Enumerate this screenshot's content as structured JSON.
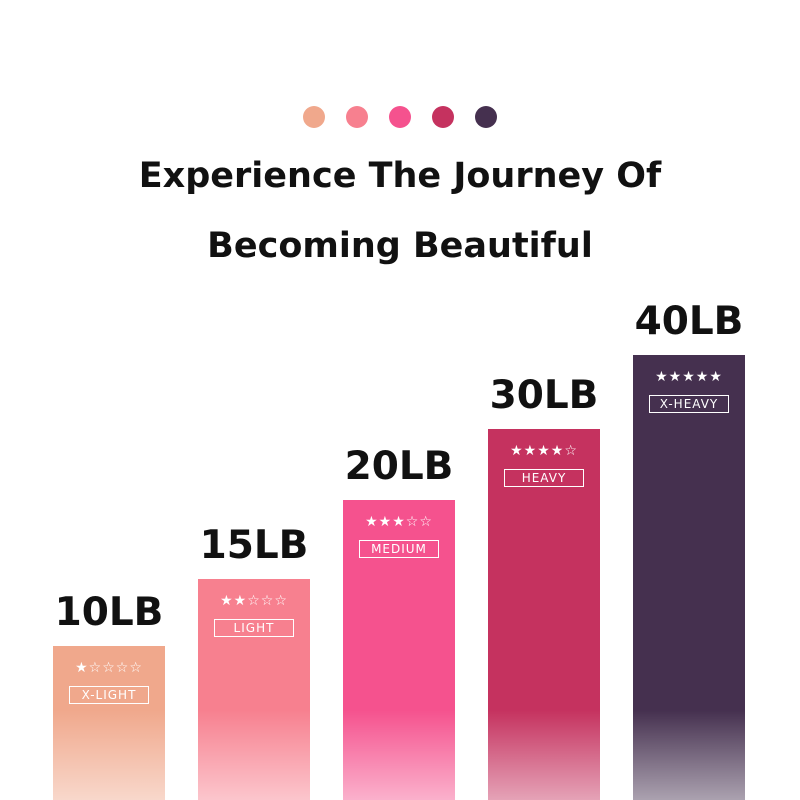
{
  "dots": [
    "#F0A88C",
    "#F7808F",
    "#F5528E",
    "#C5325F",
    "#45304F"
  ],
  "title_line1": "Experience The Journey Of",
  "title_line2": "Becoming Beautiful",
  "chart_data": {
    "type": "bar",
    "categories": [
      "X-LIGHT",
      "LIGHT",
      "MEDIUM",
      "HEAVY",
      "X-HEAVY"
    ],
    "values": [
      10,
      15,
      20,
      30,
      40
    ],
    "value_labels": [
      "10LB",
      "15LB",
      "20LB",
      "30LB",
      "40LB"
    ],
    "stars": [
      1,
      2,
      3,
      4,
      5
    ],
    "colors": [
      "#F0A88C",
      "#F7808F",
      "#F5528E",
      "#C5325F",
      "#45304F"
    ],
    "unit": "LB",
    "grid": false
  }
}
